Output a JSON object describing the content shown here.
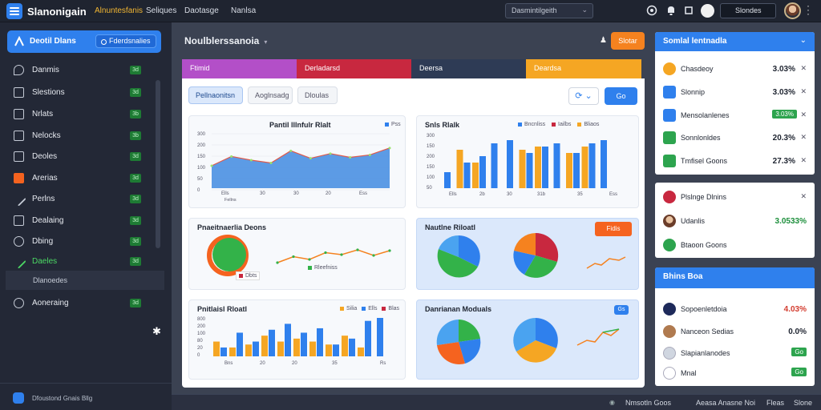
{
  "app": {
    "name": "Slanonigain",
    "logo_icon": "menu-icon"
  },
  "topnav": [
    {
      "label": "Alnuntesfanis",
      "active": true
    },
    {
      "label": "Seliques",
      "active": false
    },
    {
      "label": "Daotasge",
      "active": false
    },
    {
      "label": "Nanlsa",
      "active": false
    }
  ],
  "top_search": {
    "value": "Dasmintilgeith"
  },
  "top_icons": [
    "help-icon",
    "notification-icon",
    "settings-icon"
  ],
  "top_select": {
    "value": "Slondes"
  },
  "sidebar": {
    "header": {
      "title": "Deotil Dlans",
      "pill": "Fderdsnalies"
    },
    "items": [
      {
        "label": "Danmis",
        "badge": "3d",
        "icon": "shield-icon"
      },
      {
        "label": "Slestions",
        "badge": "3d",
        "icon": "grid-icon"
      },
      {
        "label": "Nrlats",
        "badge": "3b",
        "icon": "list-icon"
      },
      {
        "label": "Nelocks",
        "badge": "3b",
        "icon": "calendar-icon"
      },
      {
        "label": "Deoles",
        "badge": "3d",
        "icon": "doc-icon"
      },
      {
        "label": "Arerias",
        "badge": "3d",
        "icon": "grid-orange-icon"
      },
      {
        "label": "Perlns",
        "badge": "3d",
        "icon": "pen-icon"
      },
      {
        "label": "Dealaing",
        "badge": "3d",
        "icon": "chart-icon"
      },
      {
        "label": "Dbing",
        "badge": "3d",
        "icon": "lock-icon"
      },
      {
        "label": "Daeles",
        "badge": "3d",
        "icon": "edit-icon",
        "active": true
      },
      {
        "label": "Aoneraing",
        "badge": "3d",
        "icon": "clock-icon"
      }
    ],
    "subitem": "Dlanoedes",
    "footer": "Dfoustond Gnais Bllg"
  },
  "main": {
    "title": "Noulblerssanoia",
    "action_button": "Slotar",
    "tabs": [
      {
        "label": "Ftimid",
        "color": "#b34fc8"
      },
      {
        "label": "Derladarsd",
        "color": "#c8283f"
      },
      {
        "label": "Deersa",
        "color": "#2e3b55"
      },
      {
        "label": "Deardsa",
        "color": "#f5a623"
      }
    ],
    "subtabs": [
      "Pellnaonitsn",
      "Aoglnsadg",
      "Dloulas"
    ],
    "blue_button": "Go"
  },
  "cards": {
    "area": {
      "title": "Pantil lllnfulr Rlalt",
      "legend": "Pss",
      "ylabels": [
        "300",
        "200",
        "150",
        "100",
        "50",
        "0"
      ],
      "xlabels": [
        "Ells",
        "30",
        "30",
        "20",
        "Ess"
      ],
      "xsub": "Fellns"
    },
    "bars": {
      "title": "Snls Rlalk",
      "legend": [
        "Bncnliss",
        "Iailbs",
        "Bliaos"
      ],
      "ylabels": [
        "300",
        "150",
        "200",
        "150",
        "100",
        "50"
      ],
      "xlabels": [
        "Ells",
        "2b",
        "30",
        "31b",
        "35",
        "Ess"
      ]
    },
    "donut": {
      "title": "Pnaeitnaerlia Deons",
      "legend": "Dbts",
      "tag": "Rleefniss"
    },
    "pie": {
      "title": "Nautlne Riloatl",
      "button": "Fidis"
    },
    "bars2": {
      "title": "Pnitlaisl Rloatl",
      "legend": [
        "Silia",
        "Ells",
        "Blas"
      ],
      "ylabels": [
        "800",
        "200",
        "100",
        "80",
        "20",
        "0"
      ],
      "xlabels": [
        "Bns",
        "20",
        "20",
        "35",
        "Rs"
      ]
    },
    "pies2": {
      "title": "Danrianan Moduals",
      "button": "Gs"
    }
  },
  "right_panel": {
    "card1": {
      "title": "Somlal lentnadla",
      "rows": [
        {
          "label": "Chasdeoy",
          "value": "3.03%",
          "icon_color": "#f5a623"
        },
        {
          "label": "Slonnip",
          "value": "3.03%",
          "icon_color": "#2f80ed"
        },
        {
          "label": "Mensolanlenes",
          "value": "3.03%",
          "chip": true,
          "icon_color": "#2f80ed"
        },
        {
          "label": "Sonnlonldes",
          "value": "20.3%",
          "icon_color": "#2da44e"
        },
        {
          "label": "Tmfisel Goons",
          "value": "27.3%",
          "icon_color": "#2da44e"
        }
      ]
    },
    "card2": {
      "rows": [
        {
          "label": "Plslnge Dlnins",
          "icon_color": "#c8283f"
        },
        {
          "label": "Udanlis",
          "value": "3.0533%",
          "icon_color": "#6b3d2a"
        },
        {
          "label": "Btaoon Goons",
          "icon_color": "#2da44e"
        }
      ]
    },
    "card3": {
      "title": "Bhins Boa",
      "rows": [
        {
          "label": "Sopoenletdoia",
          "value": "4.03%",
          "icon_color": "#1e2a5a"
        },
        {
          "label": "Nanceon Sedias",
          "value": "0.0%",
          "icon_color": "#b07a4f"
        },
        {
          "label": "Slapianlanodes",
          "chip": "Go",
          "icon_color": "#d0d6e0"
        },
        {
          "label": "Mnal",
          "chip": "Go",
          "icon_color": "#ffffff"
        }
      ]
    }
  },
  "footer": [
    "Nmsotln Goos",
    "Aeasa Anasne Noi",
    "Fleas",
    "Slone"
  ],
  "chart_data": [
    {
      "type": "area",
      "x": [
        1,
        2,
        3,
        4,
        5,
        6,
        7,
        8,
        9,
        10
      ],
      "values": [
        120,
        170,
        150,
        135,
        200,
        160,
        185,
        165,
        178,
        215
      ],
      "ylim": [
        0,
        300
      ]
    },
    {
      "type": "bar",
      "series": [
        {
          "name": "Bncnliss",
          "values": [
            50,
            80,
            100,
            140,
            150,
            110,
            130,
            140,
            110,
            140,
            150
          ],
          "color": "#2f80ed"
        },
        {
          "name": "Iailbs",
          "values": [
            0,
            120,
            80,
            0,
            0,
            120,
            130,
            0,
            110,
            130,
            0
          ],
          "color": "#f5a623"
        }
      ],
      "ylim": [
        0,
        300
      ]
    },
    {
      "type": "line",
      "values": [
        40,
        55,
        48,
        65,
        60,
        72,
        58,
        70
      ]
    },
    {
      "type": "pie",
      "values": [
        40,
        35,
        25
      ]
    },
    {
      "type": "bar",
      "series": [
        {
          "name": "Silia",
          "values": [
            30,
            80,
            50,
            90,
            110,
            80,
            95,
            40,
            60,
            120,
            130
          ],
          "color": "#2f80ed"
        },
        {
          "name": "Ells",
          "values": [
            50,
            30,
            40,
            70,
            50,
            60,
            50,
            40,
            70,
            30,
            0
          ],
          "color": "#f5a623"
        }
      ],
      "ylim": [
        0,
        300
      ]
    }
  ]
}
